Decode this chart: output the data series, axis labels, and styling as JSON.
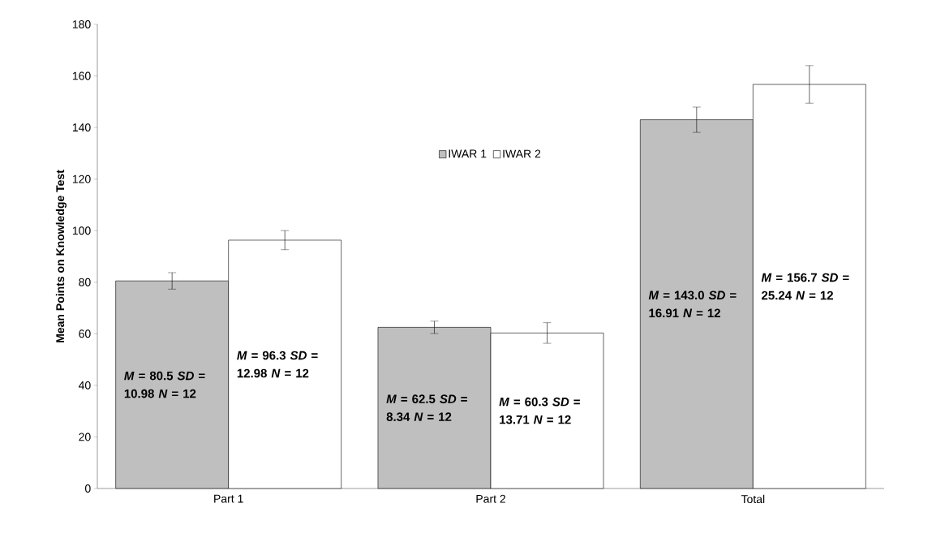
{
  "chart_data": {
    "type": "bar",
    "ylabel": "Mean Points on Knowledge Test",
    "categories": [
      "Part 1",
      "Part 2",
      "Total"
    ],
    "series": [
      {
        "name": "IWAR 1",
        "color": "#bfbfbf",
        "values": [
          80.5,
          62.5,
          143.0
        ],
        "errors": [
          3.2,
          2.4,
          4.9
        ],
        "value_labels": [
          "*M* = 80.5 *SD* = 10.98 *N* = 12",
          "*M* = 62.5 *SD* = 8.34 *N* = 12",
          "*M* = 143.0 *SD* = 16.91 *N* = 12"
        ]
      },
      {
        "name": "IWAR 2",
        "color": "#ffffff",
        "values": [
          96.3,
          60.3,
          156.7
        ],
        "errors": [
          3.7,
          4.0,
          7.3
        ],
        "value_labels": [
          "*M* = 96.3 *SD* = 12.98 *N* = 12",
          "*M* = 60.3 *SD* = 13.71 *N* = 12",
          "*M* = 156.7 *SD* = 25.24 *N* = 12"
        ]
      }
    ],
    "ylim": [
      0,
      180
    ],
    "yticks": [
      0,
      20,
      40,
      60,
      80,
      100,
      120,
      140,
      160,
      180
    ],
    "legend": "top",
    "grid": false
  }
}
